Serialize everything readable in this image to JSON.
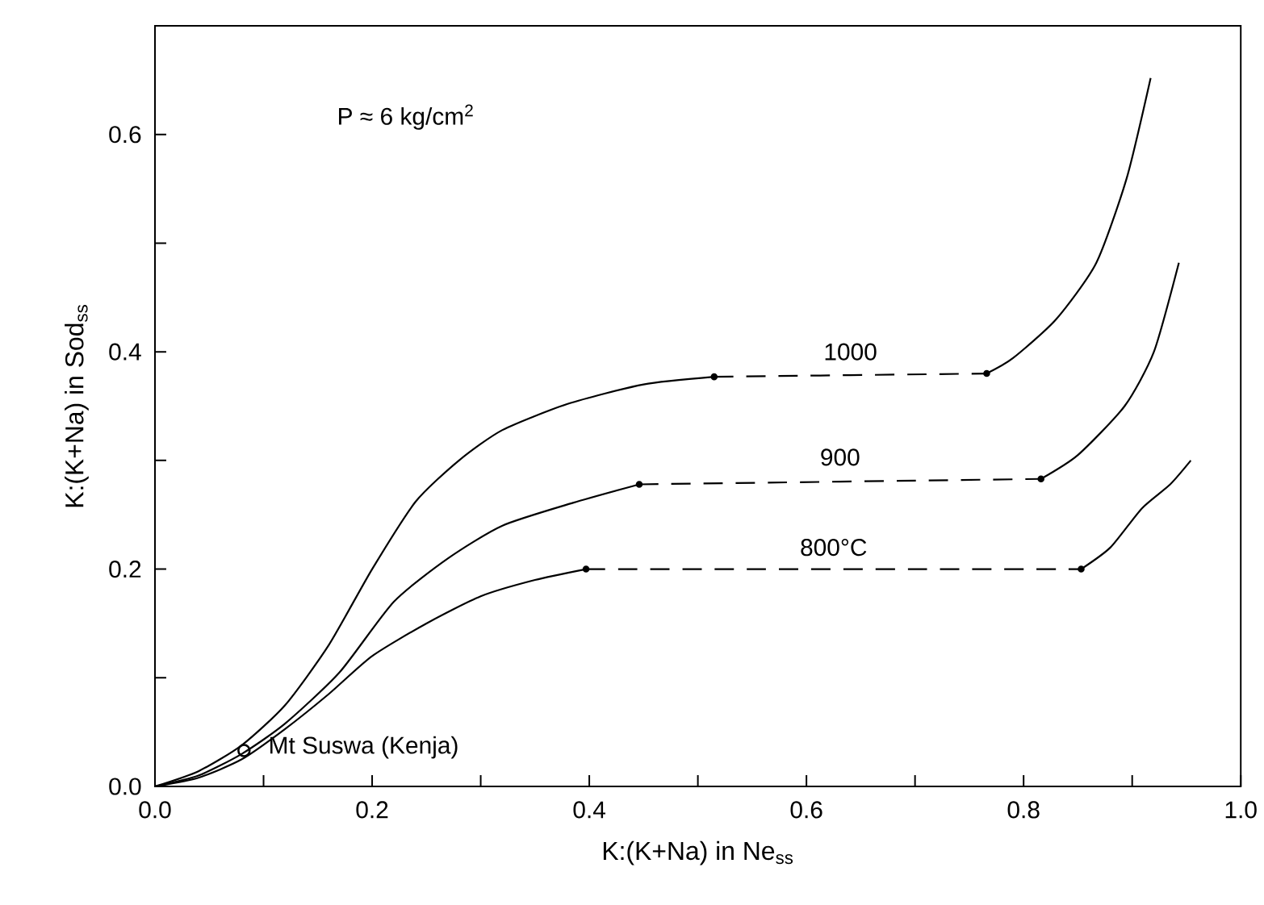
{
  "chart_data": {
    "type": "line",
    "xlabel": "K:(K+Na) in Ne$_{ss}$",
    "ylabel": "K:(K+Na) in Sod$_{ss}$",
    "annotations": [
      "P ≈ 6 kg/cm$^{2}$"
    ],
    "xlim": [
      0,
      1.0
    ],
    "ylim": [
      0,
      0.7
    ],
    "xticks": [
      {
        "value": 0,
        "label": "0.0"
      },
      {
        "value": 0.1,
        "label": null
      },
      0.2,
      {
        "value": 0.3,
        "label": null
      },
      0.4,
      {
        "value": 0.5,
        "label": null
      },
      0.6,
      {
        "value": 0.7,
        "label": null
      },
      0.8,
      {
        "value": 0.9,
        "label": null
      },
      {
        "value": 1.0,
        "label": "1.0"
      }
    ],
    "yticks": [
      {
        "value": 0,
        "label": "0.0"
      },
      {
        "value": 0.1,
        "label": null
      },
      0.2,
      {
        "value": 0.3,
        "label": null
      },
      0.4,
      {
        "value": 0.5,
        "label": null
      },
      0.6
    ],
    "series": [
      {
        "color": "#000000",
        "line_style": "solid",
        "marker": "none",
        "x": [
          0,
          0.04,
          0.08,
          0.12,
          0.16,
          0.2,
          0.24,
          0.28,
          0.32,
          0.38,
          0.45,
          0.515
        ],
        "values": [
          0,
          0.014,
          0.038,
          0.075,
          0.13,
          0.2,
          0.262,
          0.3,
          0.328,
          0.352,
          0.37,
          0.377
        ]
      },
      {
        "name": "1000",
        "color": "#000000",
        "line_style": "dashed",
        "marker": "circle",
        "x": [
          0.515,
          0.766
        ],
        "values": [
          0.377,
          0.38
        ]
      },
      {
        "color": "#000000",
        "line_style": "solid",
        "marker": "none",
        "x": [
          0.766,
          0.79,
          0.83,
          0.867,
          0.895,
          0.917
        ],
        "values": [
          0.38,
          0.394,
          0.43,
          0.482,
          0.56,
          0.652
        ]
      },
      {
        "color": "#000000",
        "line_style": "solid",
        "marker": "none",
        "x": [
          0,
          0.04,
          0.08,
          0.12,
          0.17,
          0.22,
          0.27,
          0.32,
          0.385,
          0.446
        ],
        "values": [
          0,
          0.01,
          0.03,
          0.058,
          0.105,
          0.17,
          0.21,
          0.24,
          0.261,
          0.278
        ]
      },
      {
        "name": "900",
        "color": "#000000",
        "line_style": "dashed",
        "marker": "circle",
        "x": [
          0.446,
          0.816
        ],
        "values": [
          0.278,
          0.283
        ]
      },
      {
        "color": "#000000",
        "line_style": "solid",
        "marker": "none",
        "x": [
          0.816,
          0.85,
          0.893,
          0.92,
          0.943
        ],
        "values": [
          0.283,
          0.305,
          0.35,
          0.4,
          0.482
        ]
      },
      {
        "color": "#000000",
        "line_style": "solid",
        "marker": "none",
        "x": [
          0,
          0.04,
          0.08,
          0.12,
          0.16,
          0.2,
          0.25,
          0.3,
          0.35,
          0.397
        ],
        "values": [
          0,
          0.008,
          0.025,
          0.053,
          0.085,
          0.12,
          0.15,
          0.175,
          0.19,
          0.2
        ]
      },
      {
        "name": "800°C",
        "color": "#000000",
        "line_style": "dashed",
        "marker": "circle",
        "x": [
          0.397,
          0.853
        ],
        "values": [
          0.2,
          0.2
        ]
      },
      {
        "color": "#000000",
        "line_style": "solid",
        "marker": "none",
        "x": [
          0.853,
          0.88,
          0.909,
          0.935,
          0.954
        ],
        "values": [
          0.2,
          0.22,
          0.256,
          0.278,
          0.3
        ]
      },
      {
        "name": "Mt Suswa (Kenja)",
        "type": "scatter",
        "color": "#000000",
        "marker": "circle",
        "x": [
          0.082
        ],
        "values": [
          0.033
        ]
      }
    ]
  }
}
